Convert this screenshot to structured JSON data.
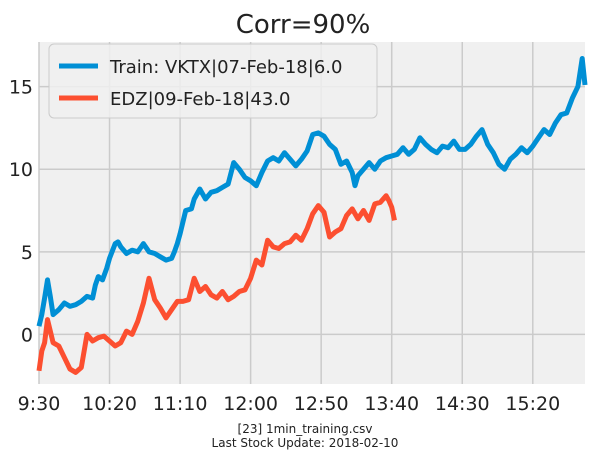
{
  "footer": {
    "line1": "[23] 1min_training.csv",
    "line2": "Last Stock Update: 2018-02-10"
  },
  "colors": {
    "background": "#f0f0f0",
    "grid": "#cbcbcb",
    "train": "#008fd5",
    "edz": "#fc4f30"
  },
  "chart_data": {
    "type": "line",
    "title": "Corr=90%",
    "xlabel": "",
    "ylabel": "",
    "xlim": [
      "9:30",
      "15:57"
    ],
    "ylim": [
      -3.0,
      17.7
    ],
    "xticks": [
      "9:30",
      "10:20",
      "11:10",
      "12:00",
      "12:50",
      "13:40",
      "14:30",
      "15:20"
    ],
    "yticks": [
      0,
      5,
      10,
      15
    ],
    "grid": true,
    "legend_position": "top-left",
    "series": [
      {
        "name": "Train: VKTX|07-Feb-18|6.0",
        "color": "#008fd5",
        "points": [
          [
            "9:30",
            0.5
          ],
          [
            "9:32",
            1.2
          ],
          [
            "9:34",
            2.2
          ],
          [
            "9:36",
            3.3
          ],
          [
            "9:38",
            2.3
          ],
          [
            "9:40",
            1.2
          ],
          [
            "9:44",
            1.5
          ],
          [
            "9:48",
            1.9
          ],
          [
            "9:52",
            1.7
          ],
          [
            "9:56",
            1.8
          ],
          [
            "10:00",
            2.0
          ],
          [
            "10:04",
            2.3
          ],
          [
            "10:08",
            2.2
          ],
          [
            "10:10",
            3.0
          ],
          [
            "10:12",
            3.5
          ],
          [
            "10:15",
            3.3
          ],
          [
            "10:18",
            4.0
          ],
          [
            "10:20",
            4.6
          ],
          [
            "10:24",
            5.5
          ],
          [
            "10:26",
            5.6
          ],
          [
            "10:28",
            5.3
          ],
          [
            "10:32",
            4.9
          ],
          [
            "10:36",
            5.1
          ],
          [
            "10:40",
            5.0
          ],
          [
            "10:44",
            5.5
          ],
          [
            "10:48",
            5.0
          ],
          [
            "10:52",
            4.9
          ],
          [
            "10:56",
            4.7
          ],
          [
            "11:00",
            4.5
          ],
          [
            "11:04",
            4.6
          ],
          [
            "11:06",
            5.0
          ],
          [
            "11:08",
            5.5
          ],
          [
            "11:10",
            6.1
          ],
          [
            "11:14",
            7.5
          ],
          [
            "11:18",
            7.6
          ],
          [
            "11:20",
            8.2
          ],
          [
            "11:24",
            8.8
          ],
          [
            "11:28",
            8.2
          ],
          [
            "11:32",
            8.6
          ],
          [
            "11:36",
            8.7
          ],
          [
            "11:40",
            8.9
          ],
          [
            "11:44",
            9.1
          ],
          [
            "11:48",
            10.4
          ],
          [
            "11:52",
            10.0
          ],
          [
            "11:56",
            9.5
          ],
          [
            "12:00",
            9.3
          ],
          [
            "12:04",
            9.0
          ],
          [
            "12:08",
            9.8
          ],
          [
            "12:12",
            10.5
          ],
          [
            "12:16",
            10.7
          ],
          [
            "12:20",
            10.5
          ],
          [
            "12:24",
            11.0
          ],
          [
            "12:28",
            10.6
          ],
          [
            "12:32",
            10.2
          ],
          [
            "12:36",
            10.6
          ],
          [
            "12:40",
            11.1
          ],
          [
            "12:44",
            12.1
          ],
          [
            "12:48",
            12.2
          ],
          [
            "12:52",
            12.0
          ],
          [
            "12:56",
            11.5
          ],
          [
            "13:00",
            11.2
          ],
          [
            "13:04",
            10.3
          ],
          [
            "13:08",
            10.5
          ],
          [
            "13:12",
            9.8
          ],
          [
            "13:14",
            9.0
          ],
          [
            "13:16",
            9.6
          ],
          [
            "13:20",
            10.0
          ],
          [
            "13:24",
            10.4
          ],
          [
            "13:28",
            10.0
          ],
          [
            "13:32",
            10.5
          ],
          [
            "13:36",
            10.7
          ],
          [
            "13:40",
            10.8
          ],
          [
            "13:44",
            10.9
          ],
          [
            "13:48",
            11.3
          ],
          [
            "13:52",
            10.9
          ],
          [
            "13:56",
            11.2
          ],
          [
            "14:00",
            11.9
          ],
          [
            "14:04",
            11.5
          ],
          [
            "14:08",
            11.2
          ],
          [
            "14:12",
            11.0
          ],
          [
            "14:16",
            11.4
          ],
          [
            "14:20",
            11.3
          ],
          [
            "14:24",
            11.7
          ],
          [
            "14:28",
            11.2
          ],
          [
            "14:32",
            11.2
          ],
          [
            "14:36",
            11.5
          ],
          [
            "14:40",
            12.0
          ],
          [
            "14:44",
            12.4
          ],
          [
            "14:48",
            11.5
          ],
          [
            "14:52",
            11.0
          ],
          [
            "14:56",
            10.3
          ],
          [
            "15:00",
            10.0
          ],
          [
            "15:04",
            10.6
          ],
          [
            "15:08",
            10.9
          ],
          [
            "15:12",
            11.3
          ],
          [
            "15:16",
            11.0
          ],
          [
            "15:20",
            11.4
          ],
          [
            "15:24",
            11.9
          ],
          [
            "15:28",
            12.4
          ],
          [
            "15:32",
            12.1
          ],
          [
            "15:36",
            12.8
          ],
          [
            "15:40",
            13.3
          ],
          [
            "15:44",
            13.4
          ],
          [
            "15:48",
            14.3
          ],
          [
            "15:52",
            15.0
          ],
          [
            "15:55",
            16.7
          ],
          [
            "15:57",
            15.1
          ]
        ]
      },
      {
        "name": "EDZ|09-Feb-18|43.0",
        "color": "#fc4f30",
        "points": [
          [
            "9:30",
            -2.2
          ],
          [
            "9:32",
            -1.0
          ],
          [
            "9:34",
            -0.5
          ],
          [
            "9:36",
            0.9
          ],
          [
            "9:38",
            0.2
          ],
          [
            "9:40",
            -0.5
          ],
          [
            "9:44",
            -0.7
          ],
          [
            "9:48",
            -1.4
          ],
          [
            "9:52",
            -2.1
          ],
          [
            "9:56",
            -2.3
          ],
          [
            "10:00",
            -2.0
          ],
          [
            "10:04",
            0.0
          ],
          [
            "10:08",
            -0.4
          ],
          [
            "10:12",
            -0.2
          ],
          [
            "10:16",
            -0.1
          ],
          [
            "10:20",
            -0.4
          ],
          [
            "10:24",
            -0.7
          ],
          [
            "10:28",
            -0.5
          ],
          [
            "10:32",
            0.2
          ],
          [
            "10:36",
            0.0
          ],
          [
            "10:40",
            0.8
          ],
          [
            "10:44",
            1.9
          ],
          [
            "10:48",
            3.4
          ],
          [
            "10:52",
            2.1
          ],
          [
            "10:56",
            1.6
          ],
          [
            "11:00",
            1.0
          ],
          [
            "11:04",
            1.5
          ],
          [
            "11:08",
            2.0
          ],
          [
            "11:12",
            2.0
          ],
          [
            "11:16",
            2.1
          ],
          [
            "11:20",
            3.4
          ],
          [
            "11:24",
            2.6
          ],
          [
            "11:28",
            2.9
          ],
          [
            "11:32",
            2.4
          ],
          [
            "11:36",
            2.2
          ],
          [
            "11:40",
            2.6
          ],
          [
            "11:44",
            2.1
          ],
          [
            "11:48",
            2.3
          ],
          [
            "11:52",
            2.6
          ],
          [
            "11:56",
            2.7
          ],
          [
            "12:00",
            3.4
          ],
          [
            "12:04",
            4.5
          ],
          [
            "12:08",
            4.2
          ],
          [
            "12:12",
            5.7
          ],
          [
            "12:16",
            5.3
          ],
          [
            "12:20",
            5.2
          ],
          [
            "12:24",
            5.5
          ],
          [
            "12:28",
            5.6
          ],
          [
            "12:32",
            6.0
          ],
          [
            "12:36",
            5.7
          ],
          [
            "12:40",
            6.4
          ],
          [
            "12:44",
            7.3
          ],
          [
            "12:48",
            7.8
          ],
          [
            "12:52",
            7.4
          ],
          [
            "12:56",
            5.9
          ],
          [
            "13:00",
            6.2
          ],
          [
            "13:04",
            6.4
          ],
          [
            "13:08",
            7.2
          ],
          [
            "13:12",
            7.6
          ],
          [
            "13:16",
            7.0
          ],
          [
            "13:20",
            7.5
          ],
          [
            "13:24",
            6.9
          ],
          [
            "13:28",
            7.9
          ],
          [
            "13:32",
            8.0
          ],
          [
            "13:36",
            8.4
          ],
          [
            "13:38",
            8.1
          ],
          [
            "13:40",
            7.7
          ],
          [
            "13:42",
            6.9
          ]
        ]
      }
    ]
  }
}
